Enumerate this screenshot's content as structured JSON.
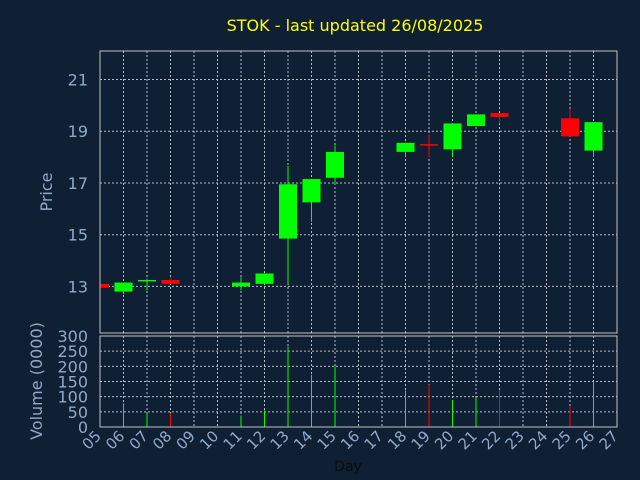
{
  "title": "STOK - last updated 26/08/2025",
  "colors": {
    "background": "#0f2035",
    "title": "#ffff00",
    "axis_text": "#8fa9c8",
    "frame": "#c0c0c0",
    "grid": "#b8bcc4",
    "up": "#00ff00",
    "down": "#ff0000"
  },
  "chart_data": [
    {
      "type": "candlestick",
      "ylabel": "Price",
      "ylim": [
        11.2,
        22.1
      ],
      "yticks": [
        "13",
        "15",
        "17",
        "19",
        "21"
      ],
      "candles": [
        {
          "day": "05",
          "open": 13.1,
          "close": 12.95,
          "high": 13.1,
          "low": 12.95
        },
        {
          "day": "06",
          "open": 12.8,
          "close": 13.15,
          "high": 13.15,
          "low": 12.7
        },
        {
          "day": "07",
          "open": 13.2,
          "close": 13.25,
          "high": 13.3,
          "low": 12.85
        },
        {
          "day": "08",
          "open": 13.25,
          "close": 13.1,
          "high": 13.3,
          "low": 13.1
        },
        {
          "day": "11",
          "open": 13.0,
          "close": 13.15,
          "high": 13.35,
          "low": 12.85
        },
        {
          "day": "12",
          "open": 13.1,
          "close": 13.5,
          "high": 13.5,
          "low": 13.1
        },
        {
          "day": "13",
          "open": 14.85,
          "close": 16.95,
          "high": 17.65,
          "low": 13.1
        },
        {
          "day": "14",
          "open": 16.25,
          "close": 17.15,
          "high": 17.15,
          "low": 15.5
        },
        {
          "day": "15",
          "open": 17.2,
          "close": 18.2,
          "high": 18.45,
          "low": 16.95
        },
        {
          "day": "18",
          "open": 18.2,
          "close": 18.55,
          "high": 18.55,
          "low": 18.0
        },
        {
          "day": "19",
          "open": 18.5,
          "close": 18.45,
          "high": 18.85,
          "low": 18.0
        },
        {
          "day": "20",
          "open": 18.3,
          "close": 19.3,
          "high": 19.3,
          "low": 18.0
        },
        {
          "day": "21",
          "open": 19.2,
          "close": 19.65,
          "high": 19.65,
          "low": 19.2
        },
        {
          "day": "22",
          "open": 19.7,
          "close": 19.55,
          "high": 19.7,
          "low": 19.3
        },
        {
          "day": "25",
          "open": 19.5,
          "close": 18.8,
          "high": 19.85,
          "low": 18.8
        },
        {
          "day": "26",
          "open": 18.25,
          "close": 19.35,
          "high": 19.35,
          "low": 18.0
        }
      ]
    },
    {
      "type": "bar",
      "ylabel": "Volume (0000)",
      "xlabel": "Day",
      "ylim": [
        0,
        300
      ],
      "yticks": [
        "0",
        "50",
        "100",
        "150",
        "200",
        "250",
        "300"
      ],
      "categories": [
        "05",
        "06",
        "07",
        "08",
        "09",
        "10",
        "11",
        "12",
        "13",
        "14",
        "15",
        "16",
        "17",
        "18",
        "19",
        "20",
        "21",
        "22",
        "23",
        "24",
        "25",
        "26",
        "27"
      ],
      "bars": [
        {
          "day": "06",
          "value": 78,
          "direction": "up"
        },
        {
          "day": "07",
          "value": 45,
          "direction": "up"
        },
        {
          "day": "08",
          "value": 45,
          "direction": "down"
        },
        {
          "day": "11",
          "value": 38,
          "direction": "up"
        },
        {
          "day": "12",
          "value": 55,
          "direction": "up"
        },
        {
          "day": "13",
          "value": 265,
          "direction": "up"
        },
        {
          "day": "14",
          "value": 172,
          "direction": "up"
        },
        {
          "day": "15",
          "value": 200,
          "direction": "up"
        },
        {
          "day": "18",
          "value": 120,
          "direction": "up"
        },
        {
          "day": "19",
          "value": 140,
          "direction": "down"
        },
        {
          "day": "20",
          "value": 88,
          "direction": "up"
        },
        {
          "day": "21",
          "value": 95,
          "direction": "up"
        },
        {
          "day": "22",
          "value": 122,
          "direction": "down"
        },
        {
          "day": "25",
          "value": 68,
          "direction": "down"
        },
        {
          "day": "26",
          "value": 148,
          "direction": "up"
        }
      ]
    }
  ]
}
